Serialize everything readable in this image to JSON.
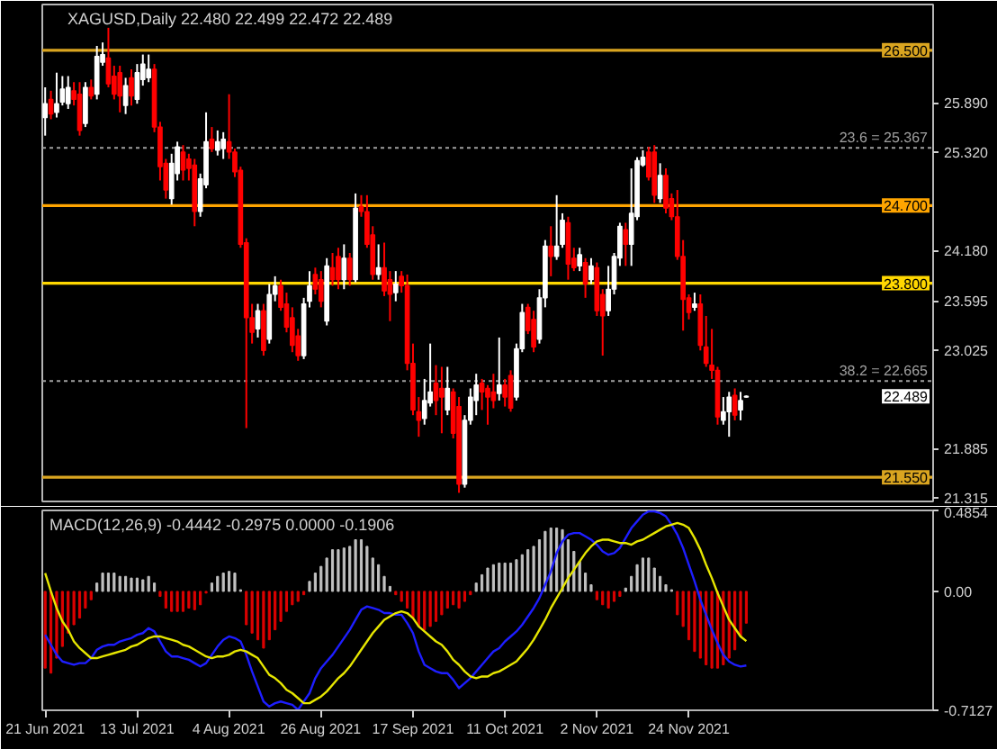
{
  "chart_data": [
    {
      "type": "candlestick",
      "title": "XAGUSD,Daily  22.480 22.499 22.472 22.489",
      "categories": [
        null,
        null,
        null,
        null,
        null,
        null,
        null,
        null,
        null,
        null,
        null,
        null,
        null,
        null,
        null,
        null,
        null,
        null,
        null,
        null,
        null,
        null,
        null,
        null,
        null,
        null,
        null,
        null,
        null,
        null,
        null,
        null,
        null,
        null,
        null,
        null,
        null,
        null,
        null,
        null,
        null,
        null,
        null,
        null,
        null,
        null,
        null,
        null,
        null,
        null,
        null,
        null,
        null,
        null,
        null,
        null,
        null,
        null,
        null,
        null,
        null,
        null,
        null,
        null,
        null,
        null,
        null,
        null,
        null,
        null,
        null,
        null,
        null,
        null,
        null,
        null,
        null,
        null,
        null,
        null,
        null,
        null,
        null,
        null,
        null,
        null,
        null,
        null,
        null,
        null,
        null,
        null,
        null,
        null,
        null,
        null,
        null,
        null,
        null,
        null,
        null,
        null,
        null,
        null,
        null,
        null,
        null,
        null,
        null,
        null,
        null,
        null,
        null,
        null,
        null,
        null,
        null,
        null,
        null,
        null,
        null,
        null,
        null,
        null,
        null,
        null,
        null,
        null,
        null,
        null,
        null,
        null,
        null,
        null,
        null,
        null,
        null,
        null,
        null,
        null,
        null,
        null,
        null,
        null,
        null,
        null,
        null,
        null,
        null,
        null,
        null,
        null,
        null,
        null,
        null
      ],
      "ohlc": [
        [
          25.72,
          26.07,
          25.51,
          25.88
        ],
        [
          25.93,
          26.03,
          25.7,
          25.76
        ],
        [
          25.78,
          26.24,
          25.72,
          25.88
        ],
        [
          25.9,
          26.2,
          25.86,
          26.05
        ],
        [
          25.88,
          26.2,
          25.82,
          26.07
        ],
        [
          26.03,
          26.13,
          25.86,
          25.93
        ],
        [
          25.99,
          26.13,
          25.51,
          25.57
        ],
        [
          25.65,
          26.13,
          25.61,
          26.07
        ],
        [
          26.07,
          26.16,
          25.93,
          25.97
        ],
        [
          25.99,
          26.55,
          25.93,
          26.43
        ],
        [
          26.36,
          26.59,
          26.32,
          26.45
        ],
        [
          26.41,
          26.76,
          26.07,
          26.11
        ],
        [
          26.2,
          26.32,
          25.93,
          25.99
        ],
        [
          26.24,
          26.32,
          25.78,
          25.97
        ],
        [
          25.86,
          26.18,
          25.76,
          26.09
        ],
        [
          26.18,
          26.28,
          25.86,
          25.97
        ],
        [
          25.93,
          26.34,
          25.88,
          26.24
        ],
        [
          26.16,
          26.45,
          26.09,
          26.34
        ],
        [
          26.18,
          26.45,
          26.13,
          26.28
        ],
        [
          26.28,
          26.34,
          25.55,
          25.61
        ],
        [
          25.61,
          25.67,
          24.99,
          25.15
        ],
        [
          25.19,
          25.24,
          24.78,
          24.88
        ],
        [
          24.78,
          25.3,
          24.71,
          25.19
        ],
        [
          25.07,
          25.44,
          24.99,
          25.38
        ],
        [
          25.32,
          25.4,
          24.99,
          25.11
        ],
        [
          25.24,
          25.3,
          24.99,
          25.13
        ],
        [
          25.17,
          25.24,
          24.46,
          24.63
        ],
        [
          24.63,
          25.07,
          24.57,
          25.01
        ],
        [
          24.94,
          25.78,
          24.9,
          25.44
        ],
        [
          25.47,
          25.61,
          25.32,
          25.36
        ],
        [
          25.34,
          25.57,
          25.28,
          25.44
        ],
        [
          25.36,
          25.55,
          25.24,
          25.47
        ],
        [
          25.44,
          25.99,
          25.24,
          25.32
        ],
        [
          25.32,
          25.36,
          25.03,
          25.09
        ],
        [
          25.11,
          25.15,
          24.21,
          24.25
        ],
        [
          24.27,
          24.32,
          22.12,
          23.4
        ],
        [
          23.4,
          23.56,
          23.1,
          23.23
        ],
        [
          23.27,
          23.56,
          23.17,
          23.48
        ],
        [
          23.48,
          23.56,
          22.96,
          23.02
        ],
        [
          23.15,
          23.79,
          23.1,
          23.67
        ],
        [
          23.67,
          23.88,
          23.59,
          23.77
        ],
        [
          23.77,
          23.84,
          23.48,
          23.52
        ],
        [
          23.56,
          23.69,
          23.23,
          23.29
        ],
        [
          23.4,
          23.52,
          23.0,
          23.08
        ],
        [
          23.19,
          23.27,
          22.9,
          22.96
        ],
        [
          22.96,
          23.63,
          22.92,
          23.56
        ],
        [
          23.59,
          23.94,
          23.52,
          23.77
        ],
        [
          23.9,
          23.98,
          23.67,
          23.73
        ],
        [
          23.84,
          23.94,
          23.52,
          23.59
        ],
        [
          23.36,
          24.09,
          23.31,
          24.0
        ],
        [
          23.98,
          24.15,
          23.77,
          23.84
        ],
        [
          24.11,
          24.21,
          23.73,
          23.84
        ],
        [
          23.84,
          24.25,
          23.73,
          24.09
        ],
        [
          24.09,
          24.15,
          23.77,
          23.84
        ],
        [
          23.84,
          24.84,
          23.81,
          24.67
        ],
        [
          24.69,
          24.82,
          24.57,
          24.63
        ],
        [
          24.63,
          24.82,
          24.21,
          24.25
        ],
        [
          24.36,
          24.46,
          23.84,
          23.9
        ],
        [
          23.9,
          24.25,
          23.84,
          23.98
        ],
        [
          23.98,
          24.27,
          23.65,
          23.71
        ],
        [
          23.84,
          23.94,
          23.36,
          23.67
        ],
        [
          23.69,
          23.94,
          23.59,
          23.79
        ],
        [
          23.88,
          23.94,
          23.69,
          23.77
        ],
        [
          23.77,
          23.9,
          22.79,
          22.87
        ],
        [
          22.87,
          23.1,
          22.27,
          22.33
        ],
        [
          22.31,
          22.48,
          22.02,
          22.21
        ],
        [
          22.23,
          22.69,
          22.16,
          22.44
        ],
        [
          22.41,
          23.1,
          22.37,
          22.54
        ],
        [
          22.64,
          22.85,
          22.27,
          22.44
        ],
        [
          22.58,
          22.83,
          22.06,
          22.48
        ],
        [
          22.33,
          22.83,
          22.27,
          22.58
        ],
        [
          22.54,
          22.58,
          22.0,
          22.06
        ],
        [
          22.37,
          22.48,
          21.37,
          21.47
        ],
        [
          21.47,
          22.27,
          21.43,
          22.21
        ],
        [
          22.21,
          22.58,
          22.16,
          22.48
        ],
        [
          22.44,
          22.75,
          22.27,
          22.62
        ],
        [
          22.64,
          22.69,
          22.33,
          22.54
        ],
        [
          22.58,
          22.62,
          22.16,
          22.48
        ],
        [
          22.54,
          22.75,
          22.35,
          22.44
        ],
        [
          22.52,
          23.17,
          22.44,
          22.62
        ],
        [
          22.62,
          22.69,
          22.37,
          22.48
        ],
        [
          22.73,
          22.79,
          22.31,
          22.35
        ],
        [
          22.48,
          23.1,
          22.44,
          23.04
        ],
        [
          23.04,
          23.56,
          23.0,
          23.46
        ],
        [
          23.52,
          23.56,
          23.21,
          23.25
        ],
        [
          23.38,
          23.48,
          23.0,
          23.06
        ],
        [
          23.15,
          23.73,
          23.1,
          23.63
        ],
        [
          23.63,
          24.3,
          23.52,
          24.23
        ],
        [
          24.23,
          24.46,
          23.88,
          24.11
        ],
        [
          24.11,
          24.82,
          24.07,
          24.23
        ],
        [
          24.25,
          24.61,
          24.21,
          24.53
        ],
        [
          24.5,
          24.57,
          23.84,
          24.02
        ],
        [
          24.09,
          24.21,
          23.94,
          23.98
        ],
        [
          24.0,
          24.21,
          23.94,
          24.13
        ],
        [
          24.04,
          24.09,
          23.63,
          23.79
        ],
        [
          23.84,
          24.09,
          23.79,
          24.0
        ],
        [
          23.98,
          24.04,
          23.42,
          23.48
        ],
        [
          23.67,
          23.73,
          22.96,
          23.42
        ],
        [
          23.48,
          24.0,
          23.42,
          23.73
        ],
        [
          23.73,
          24.15,
          23.67,
          24.11
        ],
        [
          24.09,
          24.5,
          24.0,
          24.46
        ],
        [
          24.42,
          24.5,
          24.0,
          24.25
        ],
        [
          24.25,
          25.13,
          24.0,
          24.61
        ],
        [
          24.57,
          25.26,
          24.53,
          25.22
        ],
        [
          25.17,
          25.34,
          25.15,
          25.26
        ],
        [
          25.32,
          25.38,
          24.99,
          25.03
        ],
        [
          25.32,
          25.4,
          24.73,
          24.82
        ],
        [
          24.78,
          25.19,
          24.73,
          25.05
        ],
        [
          25.05,
          25.13,
          24.61,
          24.67
        ],
        [
          24.78,
          24.84,
          24.53,
          24.57
        ],
        [
          24.57,
          24.88,
          24.07,
          24.11
        ],
        [
          24.11,
          24.3,
          23.25,
          23.61
        ],
        [
          23.63,
          23.67,
          23.38,
          23.46
        ],
        [
          23.52,
          23.69,
          23.48,
          23.56
        ],
        [
          23.56,
          23.67,
          23.02,
          23.08
        ],
        [
          23.06,
          23.42,
          22.83,
          22.87
        ],
        [
          22.85,
          23.27,
          22.69,
          22.79
        ],
        [
          22.79,
          22.83,
          22.16,
          22.25
        ],
        [
          22.21,
          22.48,
          22.16,
          22.31
        ],
        [
          22.31,
          22.54,
          22.02,
          22.48
        ],
        [
          22.5,
          22.58,
          22.21,
          22.27
        ],
        [
          22.33,
          22.54,
          22.21,
          22.44
        ],
        [
          22.48,
          22.499,
          22.472,
          22.489
        ],
        null,
        null,
        null,
        null,
        null,
        null,
        null,
        null,
        null,
        null,
        null,
        null,
        null,
        null,
        null,
        null,
        null,
        null,
        null,
        null,
        null,
        null,
        null,
        null,
        null,
        null,
        null,
        null,
        null,
        null,
        null,
        null
      ],
      "colors": [
        "#ffffff",
        "#ff0000",
        "#ffffff",
        "#ffffff",
        "#ffffff",
        "#ff0000",
        "#ff0000",
        "#ffffff",
        "#ff0000",
        "#ffffff",
        "#ffffff",
        "#ff0000",
        "#ff0000",
        "#ff0000",
        "#ffffff",
        "#ff0000",
        "#ffffff",
        "#ffffff",
        "#ffffff",
        "#ff0000",
        "#ff0000",
        "#ff0000",
        "#ffffff",
        "#ffffff",
        "#ff0000",
        "#ff0000",
        "#ff0000",
        "#ffffff",
        "#ffffff",
        "#ff0000",
        "#ffffff",
        "#ffffff",
        "#ff0000",
        "#ff0000",
        "#ff0000",
        "#ff0000",
        "#ff0000",
        "#ffffff",
        "#ff0000",
        "#ffffff",
        "#ffffff",
        "#ff0000",
        "#ff0000",
        "#ff0000",
        "#ff0000",
        "#ffffff",
        "#ffffff",
        "#ff0000",
        "#ff0000",
        "#ffffff",
        "#ff0000",
        "#ff0000",
        "#ffffff",
        "#ff0000",
        "#ffffff",
        "#ff0000",
        "#ff0000",
        "#ff0000",
        "#ffffff",
        "#ff0000",
        "#ff0000",
        "#ffffff",
        "#ff0000",
        "#ff0000",
        "#ff0000",
        "#ff0000",
        "#ffffff",
        "#ffffff",
        "#ff0000",
        "#ff0000",
        "#ffffff",
        "#ff0000",
        "#ff0000",
        "#ffffff",
        "#ffffff",
        "#ffffff",
        "#ff0000",
        "#ff0000",
        "#ff0000",
        "#ffffff",
        "#ff0000",
        "#ff0000",
        "#ffffff",
        "#ffffff",
        "#ff0000",
        "#ff0000",
        "#ffffff",
        "#ffffff",
        "#ff0000",
        "#ffffff",
        "#ffffff",
        "#ff0000",
        "#ff0000",
        "#ffffff",
        "#ff0000",
        "#ffffff",
        "#ff0000",
        "#ff0000",
        "#ffffff",
        "#ffffff",
        "#ffffff",
        "#ff0000",
        "#ffffff",
        "#ffffff",
        "#ffffff",
        "#ff0000",
        "#ff0000",
        "#ffffff",
        "#ff0000",
        "#ff0000",
        "#ff0000",
        "#ff0000",
        "#ff0000",
        "#ffffff",
        "#ff0000",
        "#ff0000",
        "#ff0000",
        "#ff0000",
        "#ffffff",
        "#ffffff",
        "#ff0000",
        "#ffffff",
        "#ffffff",
        null,
        null,
        null,
        null,
        null,
        null,
        null,
        null,
        null,
        null,
        null,
        null,
        null,
        null,
        null,
        null,
        null,
        null,
        null,
        null,
        null,
        null,
        null,
        null,
        null,
        null,
        null,
        null,
        null,
        null,
        null,
        null
      ],
      "ylim": [
        21.27,
        27.03
      ],
      "yticks": [
        {
          "value": 25.89,
          "label": "25.890"
        },
        {
          "value": 25.32,
          "label": "25.320"
        },
        {
          "value": 24.18,
          "label": "24.180"
        },
        {
          "value": 23.595,
          "label": "23.595"
        },
        {
          "value": 23.025,
          "label": "23.025"
        },
        {
          "value": 21.885,
          "label": "21.885"
        },
        {
          "value": 21.315,
          "label": "21.315"
        }
      ],
      "ref_lines": [
        {
          "axis": "y",
          "value": 26.5,
          "label": "26.500",
          "color": "#daa520"
        },
        {
          "axis": "y",
          "value": 24.7,
          "label": "24.700",
          "color": "#ffa500"
        },
        {
          "axis": "y",
          "value": 23.8,
          "label": "23.800",
          "color": "#ffd700"
        },
        {
          "axis": "y",
          "value": 21.55,
          "label": "21.550",
          "color": "#daa520"
        },
        {
          "axis": "y",
          "value": 25.367,
          "label": "23.6 = 25.367",
          "color": "#a0a0a0",
          "line_style": "dotted"
        },
        {
          "axis": "y",
          "value": 22.665,
          "label": "38.2 = 22.665",
          "color": "#a0a0a0",
          "line_style": "dotted"
        }
      ],
      "annotations": [
        {
          "text": "22.489",
          "y": 22.489
        }
      ],
      "tick_labels": "y"
    },
    {
      "type": "bar",
      "title": "MACD(12,26,9) -0.4442 -0.2975 0.0000 -0.1906",
      "categories": [
        "21 Jun 2021",
        null,
        null,
        null,
        null,
        null,
        null,
        null,
        null,
        null,
        null,
        null,
        null,
        null,
        null,
        null,
        "13 Jul 2021",
        null,
        null,
        null,
        null,
        null,
        null,
        null,
        null,
        null,
        null,
        null,
        null,
        null,
        null,
        null,
        "4 Aug 2021",
        null,
        null,
        null,
        null,
        null,
        null,
        null,
        null,
        null,
        null,
        null,
        null,
        null,
        null,
        null,
        "26 Aug 2021",
        null,
        null,
        null,
        null,
        null,
        null,
        null,
        null,
        null,
        null,
        null,
        null,
        null,
        null,
        null,
        "17 Sep 2021",
        null,
        null,
        null,
        null,
        null,
        null,
        null,
        null,
        null,
        null,
        null,
        null,
        null,
        null,
        null,
        "11 Oct 2021",
        null,
        null,
        null,
        null,
        null,
        null,
        null,
        null,
        null,
        null,
        null,
        null,
        null,
        null,
        null,
        "2 Nov 2021",
        null,
        null,
        null,
        null,
        null,
        null,
        null,
        null,
        null,
        null,
        null,
        null,
        null,
        null,
        null,
        "24 Nov 2021",
        null,
        null,
        null,
        null,
        null,
        null,
        null,
        null,
        null,
        null,
        null,
        null,
        null,
        null,
        null,
        null,
        null,
        null,
        null,
        null,
        null,
        null,
        null,
        null,
        null,
        null,
        null,
        null,
        null,
        null,
        null,
        null,
        null,
        null,
        null,
        null,
        null,
        null,
        null,
        null,
        null,
        null
      ],
      "series": [
        {
          "type": "bar",
          "values": [
            -0.46,
            -0.49,
            -0.4,
            -0.33,
            -0.25,
            -0.2,
            -0.16,
            -0.1,
            -0.05,
            0.05,
            0.11,
            0.11,
            0.11,
            0.09,
            0.09,
            0.08,
            0.08,
            0.07,
            0.09,
            0.05,
            -0.03,
            -0.1,
            -0.12,
            -0.12,
            -0.12,
            -0.1,
            -0.11,
            -0.08,
            -0.01,
            0.05,
            0.09,
            0.11,
            0.12,
            0.11,
            0.01,
            -0.2,
            -0.25,
            -0.29,
            -0.34,
            -0.29,
            -0.23,
            -0.18,
            -0.12,
            -0.08,
            -0.06,
            -0.02,
            0.06,
            0.11,
            0.15,
            0.2,
            0.25,
            0.25,
            0.26,
            0.27,
            0.31,
            0.31,
            0.27,
            0.2,
            0.16,
            0.09,
            0.03,
            -0.02,
            -0.06,
            -0.1,
            -0.16,
            -0.21,
            -0.23,
            -0.21,
            -0.18,
            -0.14,
            -0.1,
            -0.08,
            -0.1,
            -0.06,
            -0.02,
            0.05,
            0.1,
            0.14,
            0.16,
            0.17,
            0.17,
            0.17,
            0.19,
            0.22,
            0.25,
            0.27,
            0.31,
            0.36,
            0.38,
            0.38,
            0.37,
            0.31,
            0.24,
            0.18,
            0.11,
            0.04,
            -0.05,
            -0.08,
            -0.1,
            -0.06,
            -0.03,
            0.02,
            0.09,
            0.16,
            0.2,
            0.2,
            0.14,
            0.09,
            0.04,
            0.01,
            -0.14,
            -0.21,
            -0.29,
            -0.36,
            -0.4,
            -0.44,
            -0.46,
            -0.46,
            -0.44,
            -0.4,
            -0.35,
            -0.27,
            -0.1906,
            null,
            null,
            null,
            null,
            null,
            null,
            null,
            null,
            null,
            null,
            null,
            null,
            null,
            null,
            null,
            null,
            null,
            null,
            null,
            null,
            null,
            null,
            null,
            null,
            null,
            null,
            null,
            null,
            null,
            null,
            null,
            null
          ],
          "colors": [
            "#dd0000",
            "#dd0000",
            "#dd0000",
            "#dd0000",
            "#dd0000",
            "#dd0000",
            "#dd0000",
            "#dd0000",
            "#dd0000",
            "#c0c0c0",
            "#c0c0c0",
            "#c0c0c0",
            "#c0c0c0",
            "#c0c0c0",
            "#c0c0c0",
            "#c0c0c0",
            "#c0c0c0",
            "#c0c0c0",
            "#c0c0c0",
            "#c0c0c0",
            "#dd0000",
            "#dd0000",
            "#dd0000",
            "#dd0000",
            "#dd0000",
            "#dd0000",
            "#dd0000",
            "#dd0000",
            "#dd0000",
            "#c0c0c0",
            "#c0c0c0",
            "#c0c0c0",
            "#c0c0c0",
            "#c0c0c0",
            "#c0c0c0",
            "#dd0000",
            "#dd0000",
            "#dd0000",
            "#dd0000",
            "#dd0000",
            "#dd0000",
            "#dd0000",
            "#dd0000",
            "#dd0000",
            "#dd0000",
            "#dd0000",
            "#c0c0c0",
            "#c0c0c0",
            "#c0c0c0",
            "#c0c0c0",
            "#c0c0c0",
            "#c0c0c0",
            "#c0c0c0",
            "#c0c0c0",
            "#c0c0c0",
            "#c0c0c0",
            "#c0c0c0",
            "#c0c0c0",
            "#c0c0c0",
            "#c0c0c0",
            "#c0c0c0",
            "#dd0000",
            "#dd0000",
            "#dd0000",
            "#dd0000",
            "#dd0000",
            "#dd0000",
            "#dd0000",
            "#dd0000",
            "#dd0000",
            "#dd0000",
            "#dd0000",
            "#dd0000",
            "#dd0000",
            "#dd0000",
            "#c0c0c0",
            "#c0c0c0",
            "#c0c0c0",
            "#c0c0c0",
            "#c0c0c0",
            "#c0c0c0",
            "#c0c0c0",
            "#c0c0c0",
            "#c0c0c0",
            "#c0c0c0",
            "#c0c0c0",
            "#c0c0c0",
            "#c0c0c0",
            "#c0c0c0",
            "#c0c0c0",
            "#c0c0c0",
            "#c0c0c0",
            "#c0c0c0",
            "#c0c0c0",
            "#c0c0c0",
            "#c0c0c0",
            "#dd0000",
            "#dd0000",
            "#dd0000",
            "#dd0000",
            "#dd0000",
            "#c0c0c0",
            "#c0c0c0",
            "#c0c0c0",
            "#c0c0c0",
            "#c0c0c0",
            "#c0c0c0",
            "#c0c0c0",
            "#c0c0c0",
            "#c0c0c0",
            "#dd0000",
            "#dd0000",
            "#dd0000",
            "#dd0000",
            "#dd0000",
            "#dd0000",
            "#dd0000",
            "#dd0000",
            "#dd0000",
            "#dd0000",
            "#dd0000",
            "#dd0000",
            "#dd0000",
            null,
            null,
            null,
            null,
            null,
            null,
            null,
            null,
            null,
            null,
            null,
            null,
            null,
            null,
            null,
            null,
            null,
            null,
            null,
            null,
            null,
            null,
            null,
            null,
            null,
            null,
            null,
            null,
            null,
            null,
            null,
            null
          ]
        },
        {
          "type": "line",
          "color": "#1e1eff",
          "values": [
            -0.26,
            -0.32,
            -0.38,
            -0.42,
            -0.43,
            -0.44,
            -0.43,
            -0.43,
            -0.4,
            -0.35,
            -0.33,
            -0.32,
            -0.32,
            -0.3,
            -0.29,
            -0.28,
            -0.26,
            -0.25,
            -0.22,
            -0.24,
            -0.3,
            -0.36,
            -0.39,
            -0.39,
            -0.4,
            -0.41,
            -0.43,
            -0.45,
            -0.43,
            -0.38,
            -0.33,
            -0.29,
            -0.27,
            -0.28,
            -0.3,
            -0.38,
            -0.48,
            -0.57,
            -0.66,
            -0.69,
            -0.67,
            -0.66,
            -0.67,
            -0.68,
            -0.71,
            -0.66,
            -0.61,
            -0.52,
            -0.46,
            -0.42,
            -0.38,
            -0.33,
            -0.28,
            -0.23,
            -0.17,
            -0.11,
            -0.09,
            -0.1,
            -0.11,
            -0.13,
            -0.13,
            -0.14,
            -0.14,
            -0.19,
            -0.25,
            -0.36,
            -0.44,
            -0.46,
            -0.48,
            -0.49,
            -0.49,
            -0.53,
            -0.58,
            -0.55,
            -0.52,
            -0.48,
            -0.44,
            -0.4,
            -0.36,
            -0.34,
            -0.3,
            -0.27,
            -0.24,
            -0.2,
            -0.15,
            -0.1,
            -0.04,
            0.04,
            0.12,
            0.23,
            0.3,
            0.34,
            0.35,
            0.35,
            0.33,
            0.31,
            0.28,
            0.24,
            0.22,
            0.23,
            0.26,
            0.32,
            0.38,
            0.42,
            0.46,
            0.48,
            0.48,
            0.47,
            0.45,
            0.4,
            0.34,
            0.26,
            0.16,
            0.06,
            -0.05,
            -0.14,
            -0.23,
            -0.31,
            -0.38,
            -0.42,
            -0.44,
            -0.45,
            -0.4442,
            null,
            null,
            null,
            null,
            null,
            null,
            null,
            null,
            null,
            null,
            null,
            null,
            null,
            null,
            null,
            null,
            null,
            null,
            null,
            null,
            null,
            null,
            null,
            null,
            null,
            null,
            null,
            null,
            null,
            null,
            null,
            null
          ]
        },
        {
          "type": "line",
          "color": "#e6e600",
          "values": [
            0.11,
            0.0,
            -0.1,
            -0.18,
            -0.23,
            -0.3,
            -0.34,
            -0.37,
            -0.4,
            -0.4,
            -0.39,
            -0.38,
            -0.37,
            -0.36,
            -0.35,
            -0.33,
            -0.32,
            -0.3,
            -0.28,
            -0.27,
            -0.27,
            -0.28,
            -0.29,
            -0.3,
            -0.32,
            -0.33,
            -0.35,
            -0.37,
            -0.39,
            -0.4,
            -0.39,
            -0.39,
            -0.38,
            -0.36,
            -0.35,
            -0.36,
            -0.38,
            -0.4,
            -0.45,
            -0.5,
            -0.52,
            -0.55,
            -0.59,
            -0.61,
            -0.64,
            -0.67,
            -0.67,
            -0.65,
            -0.63,
            -0.6,
            -0.56,
            -0.52,
            -0.49,
            -0.45,
            -0.4,
            -0.35,
            -0.3,
            -0.25,
            -0.21,
            -0.17,
            -0.15,
            -0.13,
            -0.12,
            -0.13,
            -0.16,
            -0.21,
            -0.24,
            -0.27,
            -0.3,
            -0.32,
            -0.36,
            -0.41,
            -0.44,
            -0.48,
            -0.51,
            -0.52,
            -0.51,
            -0.51,
            -0.49,
            -0.48,
            -0.46,
            -0.44,
            -0.42,
            -0.38,
            -0.34,
            -0.29,
            -0.23,
            -0.17,
            -0.1,
            -0.04,
            0.02,
            0.08,
            0.13,
            0.18,
            0.23,
            0.27,
            0.3,
            0.31,
            0.31,
            0.3,
            0.29,
            0.29,
            0.28,
            0.3,
            0.31,
            0.33,
            0.35,
            0.37,
            0.39,
            0.4,
            0.41,
            0.4,
            0.38,
            0.32,
            0.25,
            0.16,
            0.08,
            -0.01,
            -0.09,
            -0.17,
            -0.22,
            -0.27,
            -0.2975,
            null,
            null,
            null,
            null,
            null,
            null,
            null,
            null,
            null,
            null,
            null,
            null,
            null,
            null,
            null,
            null,
            null,
            null,
            null,
            null,
            null,
            null,
            null,
            null,
            null,
            null,
            null,
            null,
            null,
            null,
            null,
            null
          ]
        }
      ],
      "ylim": [
        -0.7127,
        0.4854
      ],
      "yticks": [
        0.4854,
        {
          "value": 0,
          "label": "0.00"
        },
        -0.7127
      ]
    }
  ]
}
